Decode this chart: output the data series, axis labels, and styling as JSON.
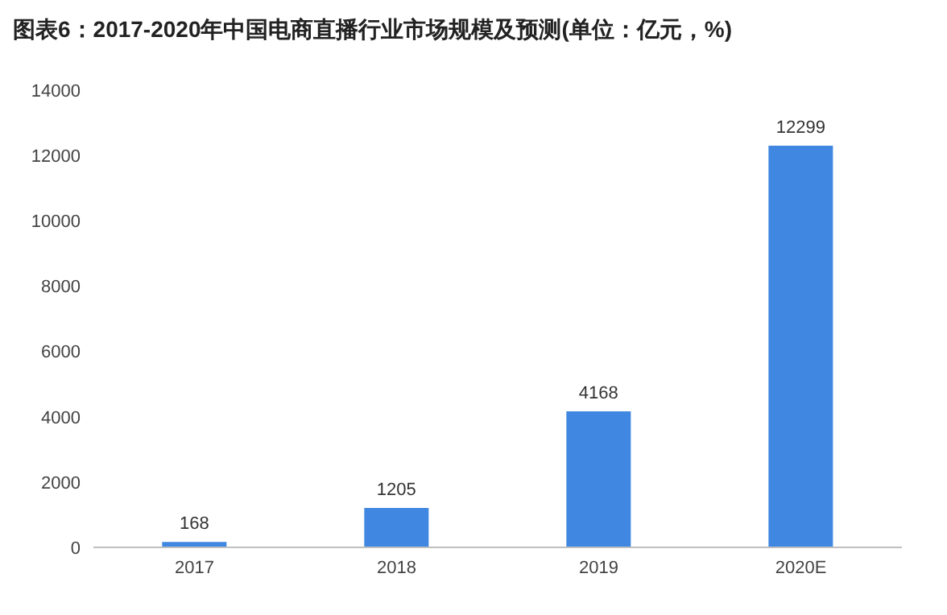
{
  "chart_data": {
    "type": "bar",
    "title": "图表6：2017-2020年中国电商直播行业市场规模及预测(单位：亿元，%)",
    "categories": [
      "2017",
      "2018",
      "2019",
      "2020E"
    ],
    "values": [
      168,
      1205,
      4168,
      12299
    ],
    "color": "#3f87e0",
    "ylim": [
      0,
      14000
    ],
    "yticks": [
      0,
      2000,
      4000,
      6000,
      8000,
      10000,
      12000,
      14000
    ],
    "grid": false,
    "data_labels": true
  }
}
